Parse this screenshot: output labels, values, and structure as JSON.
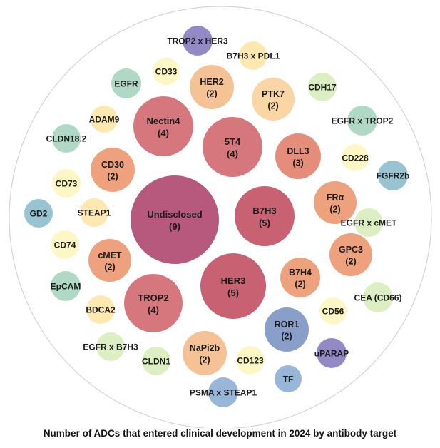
{
  "chart_data": {
    "type": "bubble",
    "title": "Number of ADCs that entered clinical development in 2024 by antibody target",
    "colors": {
      "9": "#b14b71",
      "5": "#c35566",
      "4": "#d26b72",
      "3": "#e2836f",
      "2a": "#ec9a72",
      "2b": "#f3bd8c",
      "2c": "#f8d39c",
      "2d": "#7f97c6",
      "1": "#fde7a9",
      "1b": "#fdf6c0",
      "1c": "#d9eebd",
      "1d": "#a9d6c0",
      "1e": "#8fbfce",
      "1f": "#8fb1d5",
      "1g": "#8a7fc0"
    },
    "bubbles": [
      {
        "label": "Undisclosed",
        "value": 9,
        "color": "9"
      },
      {
        "label": "B7H3",
        "value": 5,
        "color": "5"
      },
      {
        "label": "HER3",
        "value": 5,
        "color": "5"
      },
      {
        "label": "5T4",
        "value": 4,
        "color": "4"
      },
      {
        "label": "Nectin4",
        "value": 4,
        "color": "4"
      },
      {
        "label": "TROP2",
        "value": 4,
        "color": "4"
      },
      {
        "label": "DLL3",
        "value": 3,
        "color": "3"
      },
      {
        "label": "CD30",
        "value": 2,
        "color": "2a"
      },
      {
        "label": "cMET",
        "value": 2,
        "color": "2a"
      },
      {
        "label": "B7H4",
        "value": 2,
        "color": "2a"
      },
      {
        "label": "FRα",
        "value": 2,
        "color": "2a"
      },
      {
        "label": "GPC3",
        "value": 2,
        "color": "2a"
      },
      {
        "label": "HER2",
        "value": 2,
        "color": "2b"
      },
      {
        "label": "NaPi2b",
        "value": 2,
        "color": "2b"
      },
      {
        "label": "PTK7",
        "value": 2,
        "color": "2c"
      },
      {
        "label": "ROR1",
        "value": 2,
        "color": "2d"
      },
      {
        "label": "TROP2 x HER3",
        "value": 1,
        "color": "1g"
      },
      {
        "label": "B7H3 x PDL1",
        "value": 1,
        "color": "1"
      },
      {
        "label": "CD33",
        "value": 1,
        "color": "1b"
      },
      {
        "label": "EGFR",
        "value": 1,
        "color": "1d"
      },
      {
        "label": "CDH17",
        "value": 1,
        "color": "1c"
      },
      {
        "label": "ADAM9",
        "value": 1,
        "color": "1"
      },
      {
        "label": "EGFR x TROP2",
        "value": 1,
        "color": "1d"
      },
      {
        "label": "CLDN18.2",
        "value": 1,
        "color": "1d"
      },
      {
        "label": "CD228",
        "value": 1,
        "color": "1b"
      },
      {
        "label": "CD73",
        "value": 1,
        "color": "1b"
      },
      {
        "label": "FGFR2b",
        "value": 1,
        "color": "1e"
      },
      {
        "label": "GD2",
        "value": 1,
        "color": "1e"
      },
      {
        "label": "STEAP1",
        "value": 1,
        "color": "1"
      },
      {
        "label": "EGFR x cMET",
        "value": 1,
        "color": "1c"
      },
      {
        "label": "CD74",
        "value": 1,
        "color": "1b"
      },
      {
        "label": "EpCAM",
        "value": 1,
        "color": "1d"
      },
      {
        "label": "CEA (CD66)",
        "value": 1,
        "color": "1c"
      },
      {
        "label": "BDCA2",
        "value": 1,
        "color": "1"
      },
      {
        "label": "CD56",
        "value": 1,
        "color": "1b"
      },
      {
        "label": "uPARAP",
        "value": 1,
        "color": "1g"
      },
      {
        "label": "EGFR x B7H3",
        "value": 1,
        "color": "1c"
      },
      {
        "label": "CLDN1",
        "value": 1,
        "color": "1c"
      },
      {
        "label": "CD123",
        "value": 1,
        "color": "1b"
      },
      {
        "label": "TF",
        "value": 1,
        "color": "1f"
      },
      {
        "label": "PSMA x STEAP1",
        "value": 1,
        "color": "1f"
      }
    ]
  }
}
